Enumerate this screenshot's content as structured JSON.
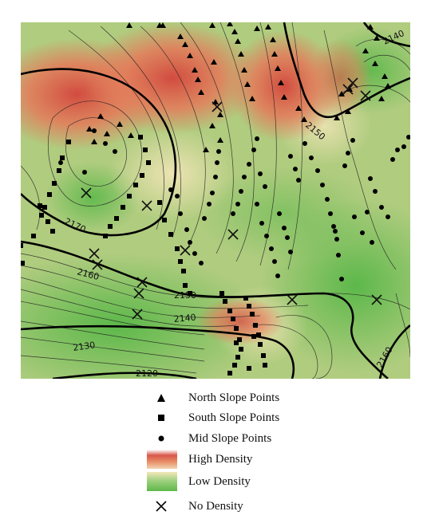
{
  "contour_labels": [
    "2140",
    "2150",
    "2170",
    "2160",
    "2150",
    "2140",
    "2130",
    "2120",
    "2160"
  ],
  "legend": {
    "north": "North Slope Points",
    "south": "South Slope Points",
    "mid": "Mid Slope Points",
    "high": "High Density",
    "low": "Low Density",
    "none": "No Density"
  },
  "colors": {
    "high": "#d9574a",
    "mid": "#f1e2b0",
    "low": "#5fb84a",
    "contour": "#111111"
  },
  "icons": {
    "north": "triangle-icon",
    "south": "square-icon",
    "mid": "circle-icon",
    "none": "x-cross-icon"
  }
}
